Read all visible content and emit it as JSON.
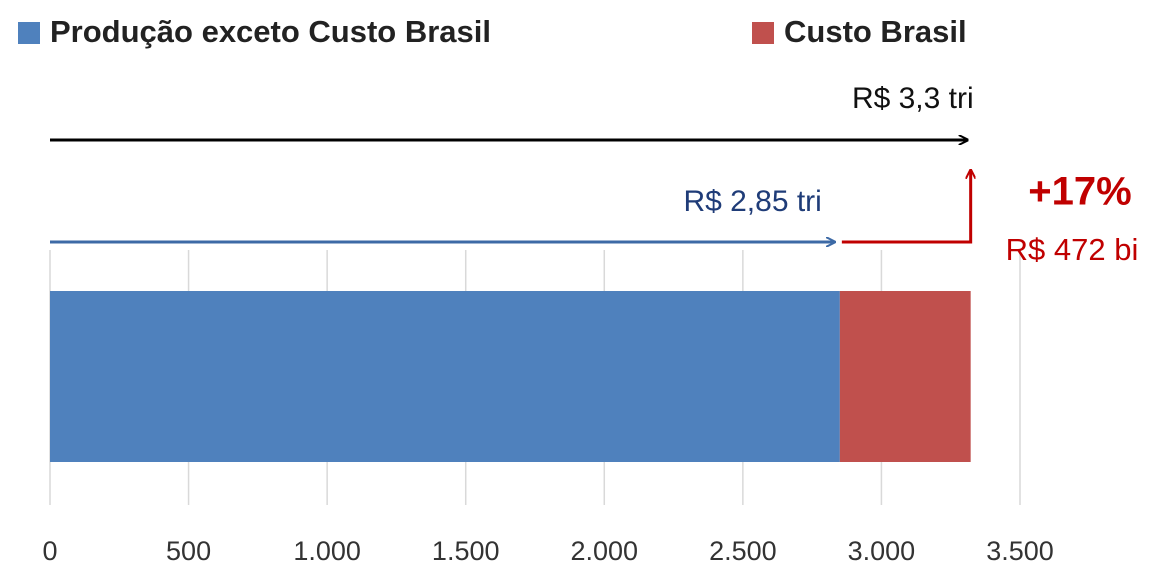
{
  "chart_data": {
    "type": "stacked-bar-horizontal",
    "categories": [
      null
    ],
    "series": [
      {
        "name": "Produção exceto Custo Brasil",
        "color": "#4f81bd",
        "values": [
          2850
        ]
      },
      {
        "name": "Custo Brasil",
        "color": "#c0504d",
        "values": [
          472
        ]
      }
    ],
    "xlim": [
      0,
      3500
    ],
    "xticks": [
      0,
      500,
      {
        "value": 1000,
        "label": "1.000"
      },
      {
        "value": 1500,
        "label": "1.500"
      },
      {
        "value": 2000,
        "label": "2.000"
      },
      {
        "value": 2500,
        "label": "2.500"
      },
      {
        "value": 3000,
        "label": "3.000"
      },
      {
        "value": 3500,
        "label": "3.500"
      }
    ],
    "grid": true,
    "annotations": {
      "total": "R$ 3,3 tri",
      "base": "R$ 2,85 tri",
      "increase_pct": "+17%",
      "increase_value": "R$ 472 bi"
    }
  }
}
